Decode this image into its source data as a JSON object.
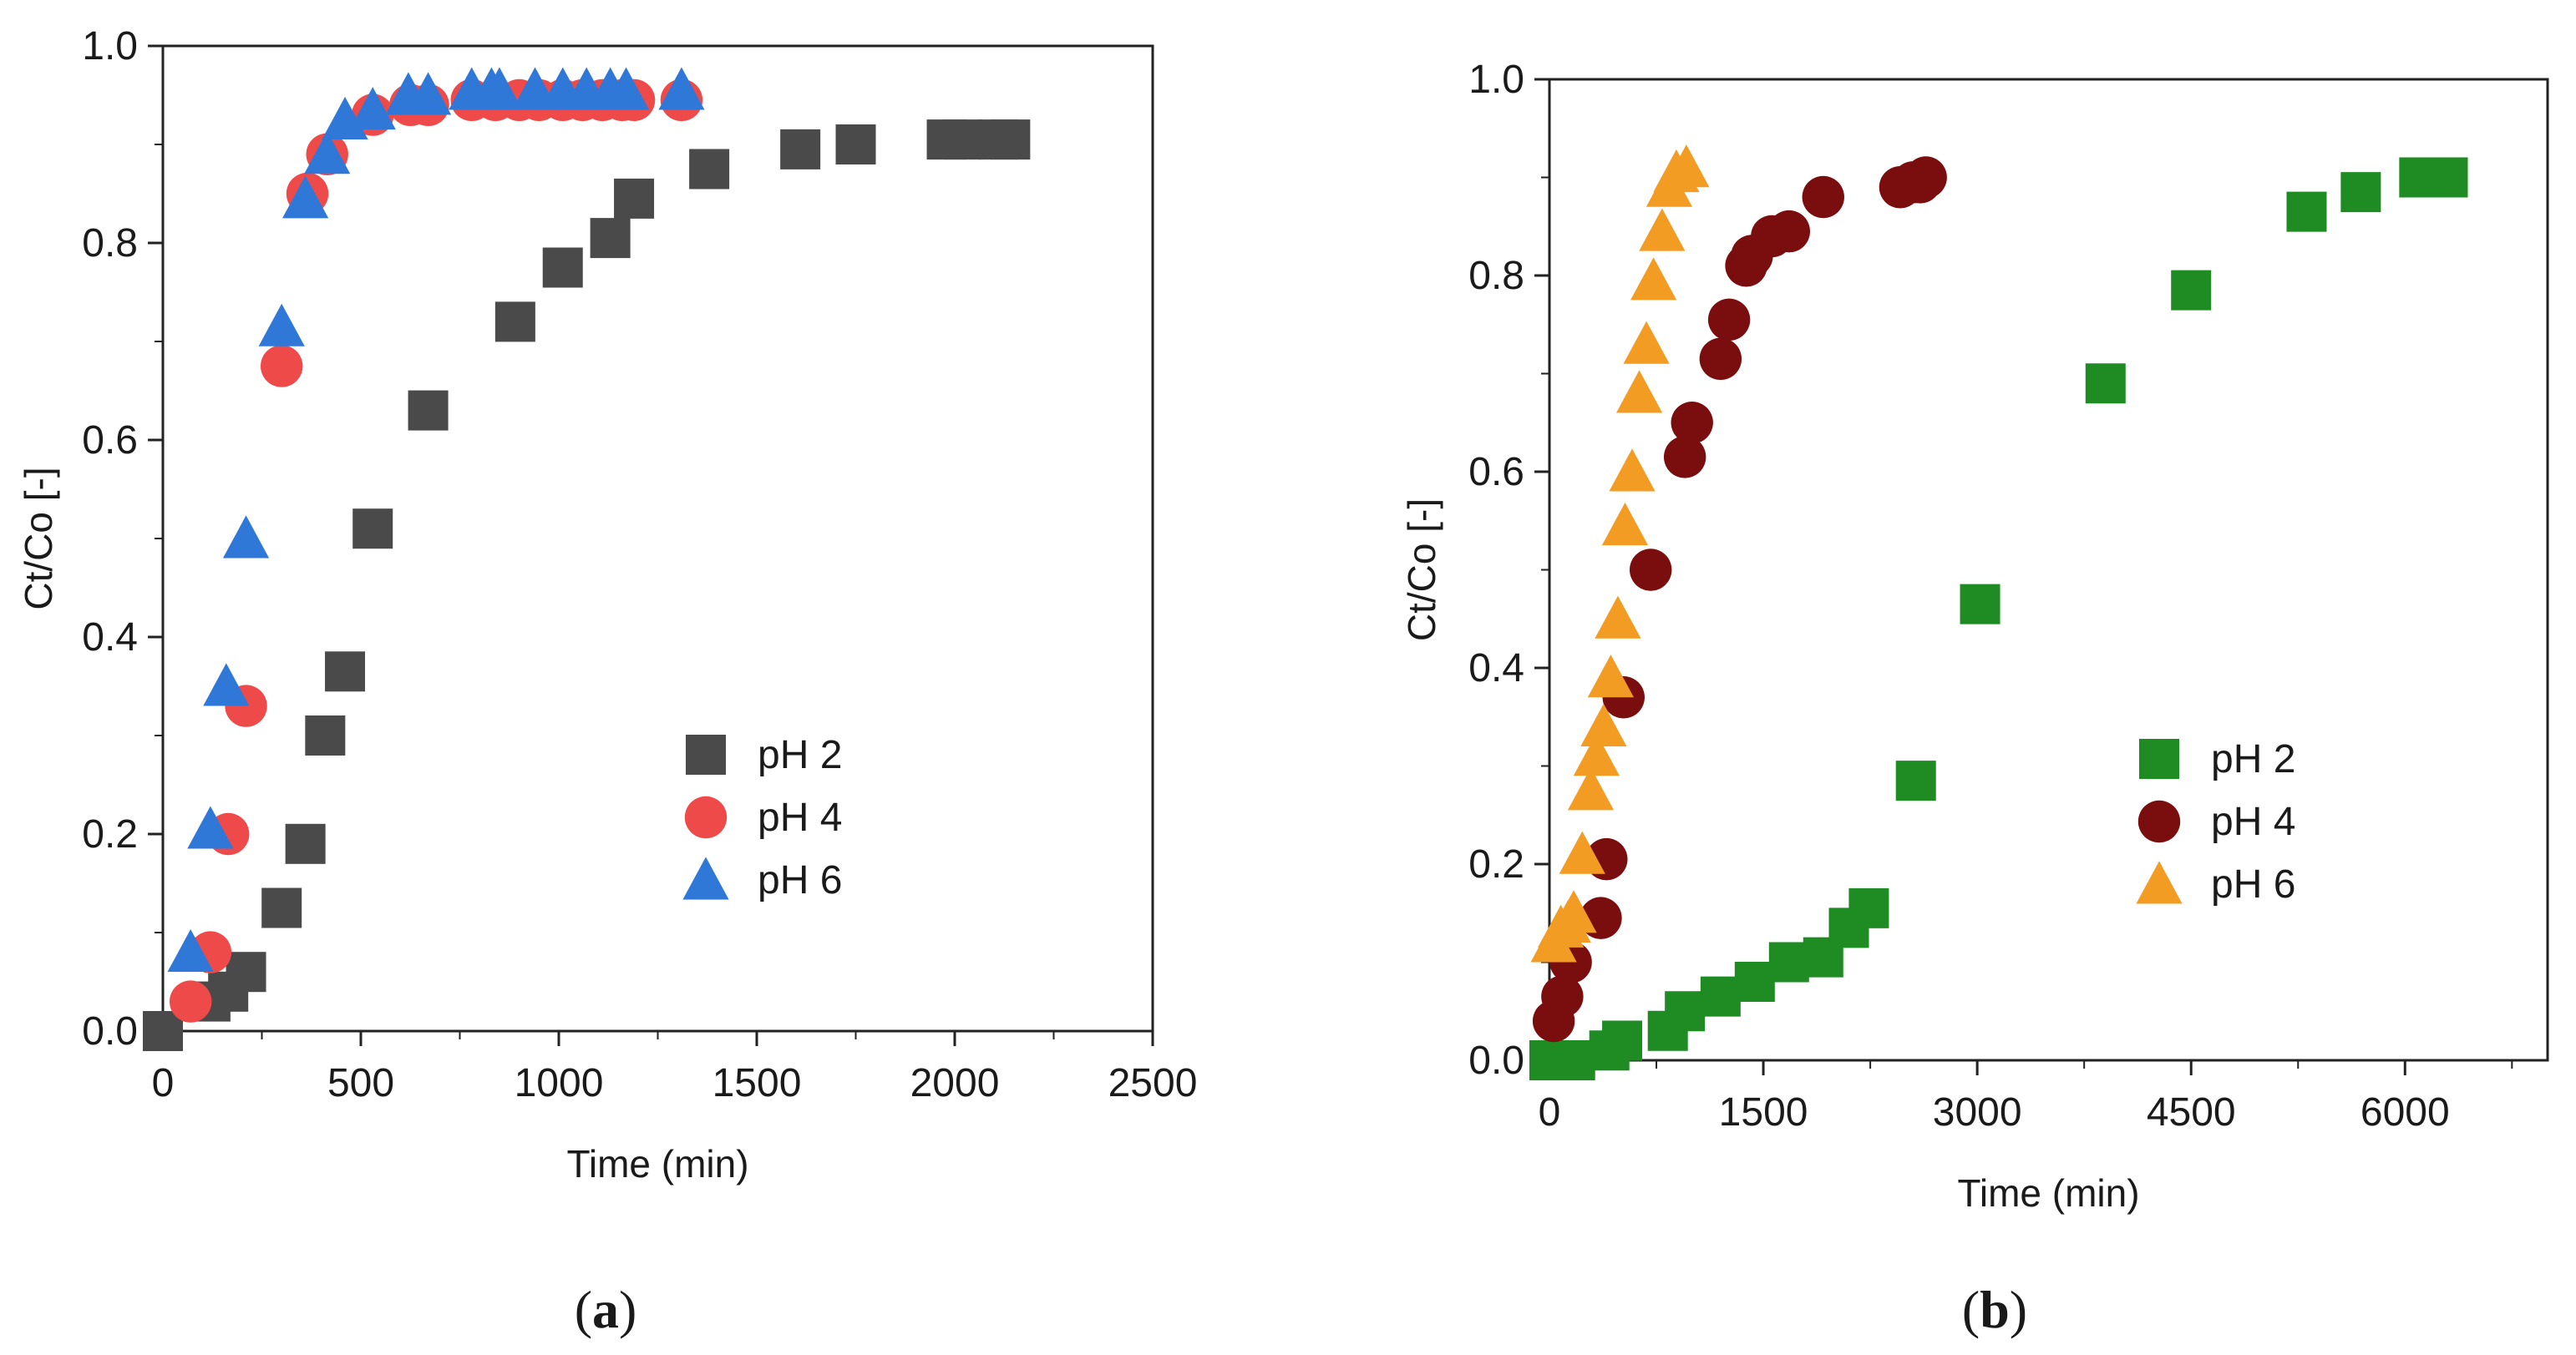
{
  "chart_data": [
    {
      "type": "scatter",
      "panel_label": "a",
      "xlabel": "Time (min)",
      "ylabel": "Ct/Co [-]",
      "xlim": [
        0,
        2500
      ],
      "ylim": [
        0,
        1.0
      ],
      "xticks": [
        "0",
        "500",
        "1000",
        "1500",
        "2000",
        "2500"
      ],
      "yticks": [
        "0.0",
        "0.2",
        "0.4",
        "0.6",
        "0.8",
        "1.0"
      ],
      "legend_position": "lower-right",
      "series": [
        {
          "name": "pH 2",
          "marker": "square",
          "color": "#4a4a4a",
          "x": [
            0,
            120,
            165,
            210,
            300,
            360,
            410,
            460,
            530,
            670,
            890,
            1010,
            1130,
            1190,
            1380,
            1610,
            1750,
            1980,
            2020,
            2110,
            2140
          ],
          "y": [
            0.0,
            0.03,
            0.04,
            0.06,
            0.125,
            0.19,
            0.3,
            0.365,
            0.51,
            0.63,
            0.72,
            0.775,
            0.805,
            0.845,
            0.875,
            0.895,
            0.9,
            0.905,
            0.905,
            0.905,
            0.905
          ]
        },
        {
          "name": "pH 4",
          "marker": "circle",
          "color": "#ef4a4a",
          "x": [
            70,
            120,
            165,
            210,
            300,
            365,
            415,
            530,
            625,
            670,
            780,
            840,
            900,
            950,
            1010,
            1060,
            1110,
            1160,
            1190,
            1310
          ],
          "y": [
            0.03,
            0.08,
            0.2,
            0.33,
            0.675,
            0.85,
            0.89,
            0.93,
            0.94,
            0.94,
            0.945,
            0.945,
            0.945,
            0.945,
            0.945,
            0.945,
            0.945,
            0.945,
            0.945,
            0.945
          ]
        },
        {
          "name": "pH 6",
          "marker": "triangle",
          "color": "#2f78d8",
          "x": [
            70,
            120,
            160,
            210,
            300,
            360,
            415,
            460,
            530,
            620,
            670,
            780,
            830,
            850,
            940,
            1010,
            1070,
            1130,
            1170,
            1310
          ],
          "y": [
            0.08,
            0.205,
            0.35,
            0.5,
            0.715,
            0.845,
            0.89,
            0.925,
            0.935,
            0.95,
            0.95,
            0.955,
            0.955,
            0.955,
            0.955,
            0.955,
            0.955,
            0.955,
            0.955,
            0.955
          ]
        }
      ]
    },
    {
      "type": "scatter",
      "panel_label": "b",
      "xlabel": "Time (min)",
      "ylabel": "Ct/Co [-]",
      "xlim": [
        0,
        7000
      ],
      "ylim": [
        0,
        1.0
      ],
      "xticks": [
        "0",
        "1500",
        "3000",
        "4500",
        "6000"
      ],
      "yticks": [
        "0.0",
        "0.2",
        "0.4",
        "0.6",
        "0.8",
        "1.0"
      ],
      "legend_position": "lower-right",
      "series": [
        {
          "name": "pH 2",
          "marker": "square",
          "color": "#1e8c22",
          "x": [
            0,
            60,
            120,
            180,
            420,
            510,
            830,
            950,
            1200,
            1440,
            1680,
            1920,
            2100,
            2240,
            2570,
            3020,
            3900,
            4500,
            5310,
            5690,
            6100,
            6300
          ],
          "y": [
            0.0,
            0.0,
            0.0,
            0.0,
            0.01,
            0.02,
            0.03,
            0.05,
            0.065,
            0.08,
            0.1,
            0.105,
            0.135,
            0.155,
            0.285,
            0.465,
            0.69,
            0.785,
            0.865,
            0.885,
            0.9,
            0.9
          ]
        },
        {
          "name": "pH 4",
          "marker": "circle",
          "color": "#7a0d0d",
          "x": [
            30,
            90,
            150,
            360,
            400,
            520,
            710,
            950,
            1000,
            1200,
            1260,
            1380,
            1420,
            1560,
            1680,
            1920,
            2460,
            2550,
            2600,
            2640
          ],
          "y": [
            0.04,
            0.065,
            0.1,
            0.145,
            0.205,
            0.37,
            0.5,
            0.615,
            0.65,
            0.715,
            0.755,
            0.81,
            0.82,
            0.84,
            0.845,
            0.88,
            0.89,
            0.895,
            0.895,
            0.9
          ]
        },
        {
          "name": "pH 6",
          "marker": "triangle",
          "color": "#f39c24",
          "x": [
            30,
            80,
            130,
            170,
            230,
            290,
            330,
            380,
            430,
            480,
            530,
            580,
            630,
            680,
            730,
            790,
            840,
            890,
            960
          ],
          "y": [
            0.12,
            0.135,
            0.14,
            0.15,
            0.21,
            0.275,
            0.31,
            0.34,
            0.39,
            0.45,
            0.545,
            0.6,
            0.68,
            0.73,
            0.795,
            0.845,
            0.89,
            0.905,
            0.91
          ]
        }
      ]
    }
  ]
}
